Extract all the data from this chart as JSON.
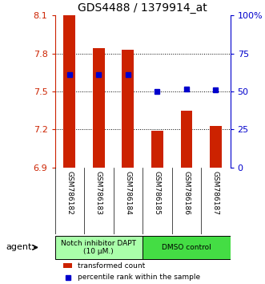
{
  "title": "GDS4488 / 1379914_at",
  "samples": [
    "GSM786182",
    "GSM786183",
    "GSM786184",
    "GSM786185",
    "GSM786186",
    "GSM786187"
  ],
  "bar_values": [
    8.1,
    7.84,
    7.83,
    7.19,
    7.35,
    7.23
  ],
  "percentile_values": [
    7.63,
    7.63,
    7.63,
    7.5,
    7.52,
    7.51
  ],
  "bar_bottom": 6.9,
  "ylim": [
    6.9,
    8.1
  ],
  "yticks": [
    6.9,
    7.2,
    7.5,
    7.8,
    8.1
  ],
  "right_yticks": [
    0,
    25,
    50,
    75,
    100
  ],
  "right_yticklabels": [
    "0",
    "25",
    "50",
    "75",
    "100%"
  ],
  "bar_color": "#cc2200",
  "dot_color": "#0000cc",
  "background_color": "#ffffff",
  "plot_bg": "#ffffff",
  "grid_color": "#000000",
  "agent_groups": [
    {
      "label": "Notch inhibitor DAPT\n(10 μM.)",
      "count": 3,
      "color": "#aaffaa"
    },
    {
      "label": "DMSO control",
      "count": 3,
      "color": "#44dd44"
    }
  ],
  "legend_bar_label": "transformed count",
  "legend_dot_label": "percentile rank within the sample",
  "agent_label": "agent"
}
